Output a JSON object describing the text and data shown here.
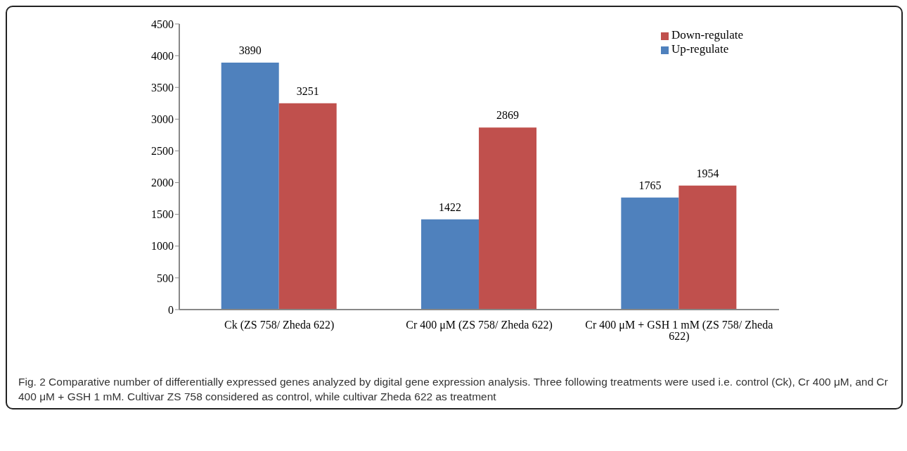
{
  "chart_data": {
    "type": "bar",
    "categories": [
      "Ck (ZS 758/ Zheda 622)",
      "Cr 400 μM (ZS 758/ Zheda 622)",
      "Cr 400 μM + GSH 1 mM (ZS 758/ Zheda 622)"
    ],
    "series": [
      {
        "name": "Up-regulate",
        "color": "#4f81bd",
        "values": [
          3890,
          1422,
          1765
        ]
      },
      {
        "name": "Down-regulate",
        "color": "#c0504d",
        "values": [
          3251,
          2869,
          1954
        ]
      }
    ],
    "ylim": [
      0,
      4500
    ],
    "yticks": [
      0,
      500,
      1000,
      1500,
      2000,
      2500,
      3000,
      3500,
      4000,
      4500
    ],
    "grid": false,
    "legend": "top right",
    "data_labels": true,
    "annotations": [
      "Fig. 2 Comparative number of differentially expressed genes analyzed by digital gene expression analysis. Three following treatments were used i.e. control (Ck), Cr 400 μM, and Cr 400 μM + GSH 1 mM. Cultivar ZS 758 considered as control, while cultivar Zheda 622 as treatment"
    ]
  }
}
